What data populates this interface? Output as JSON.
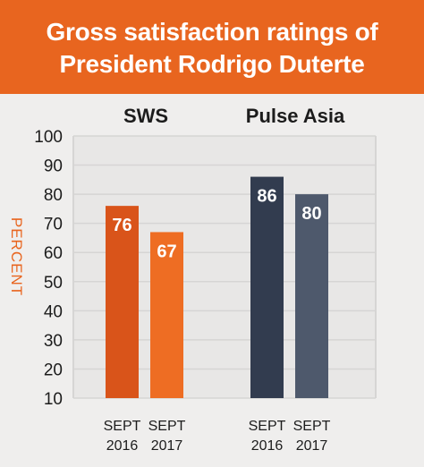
{
  "header": {
    "title_line1": "Gross satisfaction ratings of",
    "title_line2": "President Rodrigo Duterte"
  },
  "colors": {
    "banner": "#e8651f",
    "sws_2016": "#d9541a",
    "sws_2017": "#ee6d23",
    "pulse_2016": "#323c4f",
    "pulse_2017": "#4e596c",
    "background": "#efeeed",
    "gridline": "#d6d5d4"
  },
  "chart_data": {
    "type": "bar",
    "ylabel": "PERCENT",
    "ylim": [
      10,
      100
    ],
    "yticks": [
      10,
      20,
      30,
      40,
      50,
      60,
      70,
      80,
      90,
      100
    ],
    "grid": true,
    "groups": [
      {
        "name": "SWS",
        "bars": [
          {
            "category": [
              "SEPT",
              "2016"
            ],
            "value": 76,
            "label": "76"
          },
          {
            "category": [
              "SEPT",
              "2017"
            ],
            "value": 67,
            "label": "67"
          }
        ]
      },
      {
        "name": "Pulse Asia",
        "bars": [
          {
            "category": [
              "SEPT",
              "2016"
            ],
            "value": 86,
            "label": "86"
          },
          {
            "category": [
              "SEPT",
              "2017"
            ],
            "value": 80,
            "label": "80"
          }
        ]
      }
    ]
  }
}
